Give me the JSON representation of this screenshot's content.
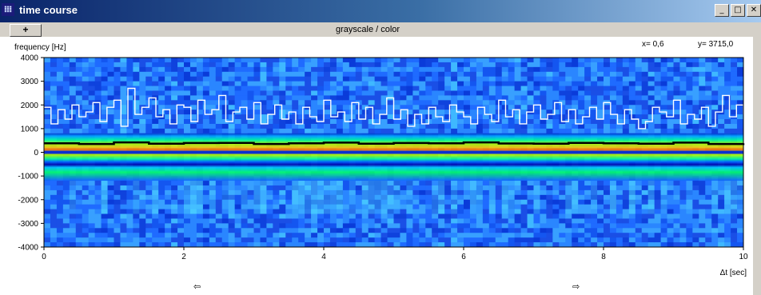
{
  "window": {
    "title": "time course",
    "icon": "app-icon",
    "controls": [
      "minimize-icon",
      "maximize-icon",
      "close-icon"
    ]
  },
  "toolbar": {
    "plus_label": "+",
    "mode_label": "grayscale / color"
  },
  "readout": {
    "x_text": "x= 0,6",
    "y_text": "y= 3715,0"
  },
  "nav": {
    "left_arrow": "⇦",
    "right_arrow": "⇨"
  },
  "chart_data": {
    "type": "heatmap",
    "title": "",
    "xlabel": "Δt [sec]",
    "ylabel": "frequency [Hz]",
    "xlim": [
      0,
      10
    ],
    "ylim": [
      -4000,
      4000
    ],
    "x_ticks": [
      0,
      2,
      4,
      6,
      8,
      10
    ],
    "y_ticks": [
      4000,
      3000,
      2000,
      1000,
      0,
      -1000,
      -2000,
      -3000,
      -4000
    ],
    "grid": false,
    "colormap": "jet",
    "series": [
      {
        "name": "",
        "color": "#ffffff",
        "x": [
          0,
          0.1,
          0.2,
          0.3,
          0.4,
          0.5,
          0.6,
          0.7,
          0.8,
          0.9,
          1.0,
          1.1,
          1.2,
          1.3,
          1.4,
          1.5,
          1.6,
          1.7,
          1.8,
          1.9,
          2.0,
          2.1,
          2.2,
          2.3,
          2.4,
          2.5,
          2.6,
          2.7,
          2.8,
          2.9,
          3.0,
          3.1,
          3.2,
          3.3,
          3.4,
          3.5,
          3.6,
          3.7,
          3.8,
          3.9,
          4.0,
          4.1,
          4.2,
          4.3,
          4.4,
          4.5,
          4.6,
          4.7,
          4.8,
          4.9,
          5.0,
          5.1,
          5.2,
          5.3,
          5.4,
          5.5,
          5.6,
          5.7,
          5.8,
          5.9,
          6.0,
          6.1,
          6.2,
          6.3,
          6.4,
          6.5,
          6.6,
          6.7,
          6.8,
          6.9,
          7.0,
          7.1,
          7.2,
          7.3,
          7.4,
          7.5,
          7.6,
          7.7,
          7.8,
          7.9,
          8.0,
          8.1,
          8.2,
          8.3,
          8.4,
          8.5,
          8.6,
          8.7,
          8.8,
          8.9,
          9.0,
          9.1,
          9.2,
          9.3,
          9.4,
          9.5,
          9.6,
          9.7,
          9.8,
          9.9,
          10.0
        ],
        "y": [
          1900,
          1200,
          1800,
          1400,
          2000,
          1500,
          1700,
          2100,
          1300,
          1900,
          2200,
          1100,
          2700,
          1600,
          1900,
          2300,
          1500,
          1800,
          1200,
          2000,
          1900,
          1300,
          2200,
          1600,
          1800,
          2400,
          1300,
          1700,
          1900,
          1400,
          2100,
          1200,
          1600,
          2000,
          1400,
          1700,
          1200,
          1900,
          1500,
          1300,
          2200,
          1500,
          1700,
          1300,
          2100,
          1400,
          1900,
          1200,
          1600,
          2300,
          1400,
          1800,
          1100,
          1600,
          1200,
          1900,
          1500,
          1300,
          2000,
          1700,
          1500,
          1200,
          1900,
          1600,
          1300,
          2200,
          1500,
          1800,
          1200,
          1700,
          2000,
          1400,
          1600,
          2100,
          1300,
          1800,
          1200,
          1500,
          1900,
          1400,
          2100,
          1600,
          1200,
          1800,
          1400,
          1000,
          1300,
          1900,
          1700,
          1500,
          2200,
          1200,
          1600,
          1400,
          1900,
          1100,
          1700,
          2400,
          1500,
          2000,
          1600
        ]
      },
      {
        "name": "",
        "color": "#000000",
        "x": [
          0,
          0.5,
          1.0,
          1.5,
          2.0,
          2.5,
          3.0,
          3.5,
          4.0,
          4.5,
          5.0,
          5.5,
          6.0,
          6.5,
          7.0,
          7.5,
          8.0,
          8.5,
          9.0,
          9.5,
          10.0
        ],
        "y": [
          380,
          350,
          420,
          360,
          390,
          400,
          350,
          380,
          410,
          360,
          390,
          380,
          420,
          370,
          360,
          400,
          380,
          360,
          410,
          350,
          380
        ]
      }
    ]
  }
}
